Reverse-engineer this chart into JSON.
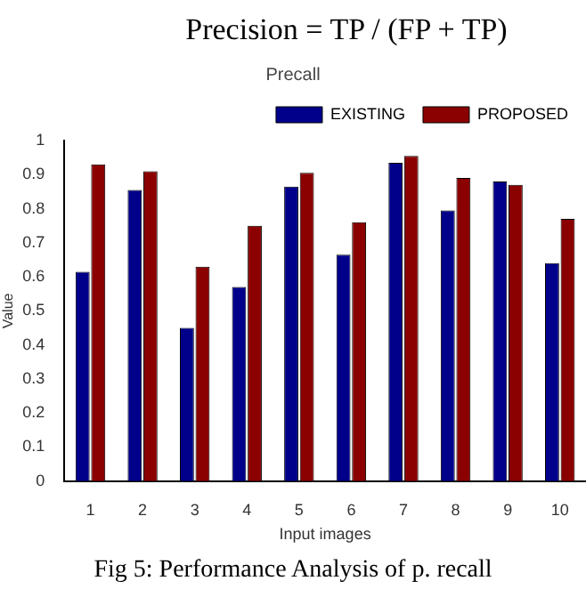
{
  "chart_data": {
    "type": "bar",
    "title": "Precall",
    "xlabel": "Input images",
    "ylabel": "Value",
    "annotations": [
      "Precision = TP / (FP + TP)",
      "Fig 5: Performance Analysis of p. recall"
    ],
    "categories": [
      "1",
      "2",
      "3",
      "4",
      "5",
      "6",
      "7",
      "8",
      "9",
      "10"
    ],
    "series": [
      {
        "name": "EXISTING",
        "color": "#00008b",
        "values": [
          0.615,
          0.855,
          0.45,
          0.57,
          0.865,
          0.665,
          0.935,
          0.795,
          0.88,
          0.64
        ]
      },
      {
        "name": "PROPOSED",
        "color": "#8b0000",
        "values": [
          0.93,
          0.91,
          0.63,
          0.75,
          0.905,
          0.76,
          0.955,
          0.89,
          0.87,
          0.77
        ]
      }
    ],
    "ylim": [
      0,
      1
    ],
    "yticks": [
      0,
      0.1,
      0.2,
      0.3,
      0.4,
      0.5,
      0.6,
      0.7,
      0.8,
      0.9,
      1
    ],
    "grid": false,
    "legend": "top right"
  }
}
